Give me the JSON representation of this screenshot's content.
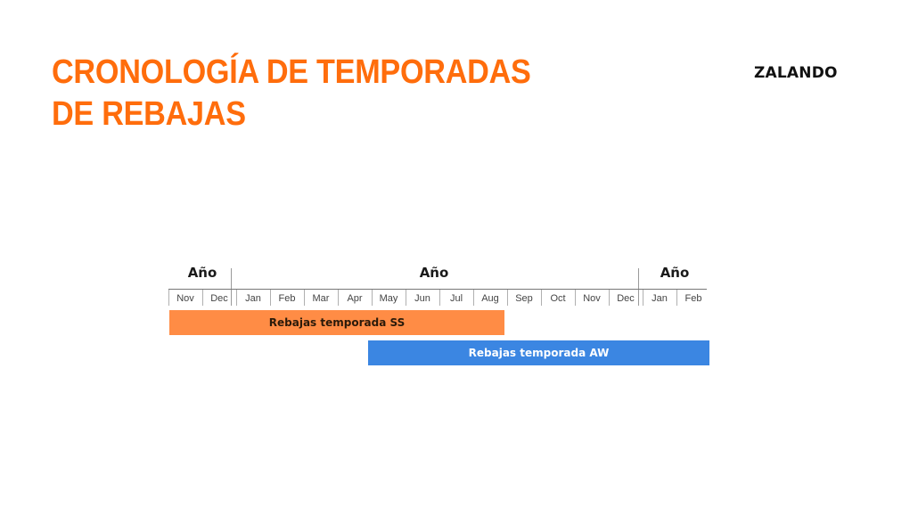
{
  "title": {
    "line1": "CRONOLOGÍA DE TEMPORADAS",
    "line2": "DE REBAJAS"
  },
  "brand": "ZALANDO",
  "colors": {
    "accent": "#ff6d0c",
    "ss_bar": "#ff8c45",
    "aw_bar": "#3b86e2"
  },
  "timeline": {
    "years": [
      "Año",
      "Año",
      "Año"
    ],
    "months": [
      "Nov",
      "Dec",
      "Jan",
      "Feb",
      "Mar",
      "Apr",
      "May",
      "Jun",
      "Jul",
      "Aug",
      "Sep",
      "Oct",
      "Nov",
      "Dec",
      "Jan",
      "Feb"
    ],
    "bars": [
      {
        "label": "Rebajas temporada SS",
        "start_month": "Nov",
        "end_month": "Aug"
      },
      {
        "label": "Rebajas temporada AW",
        "start_month": "May",
        "end_month": "Feb"
      }
    ]
  }
}
